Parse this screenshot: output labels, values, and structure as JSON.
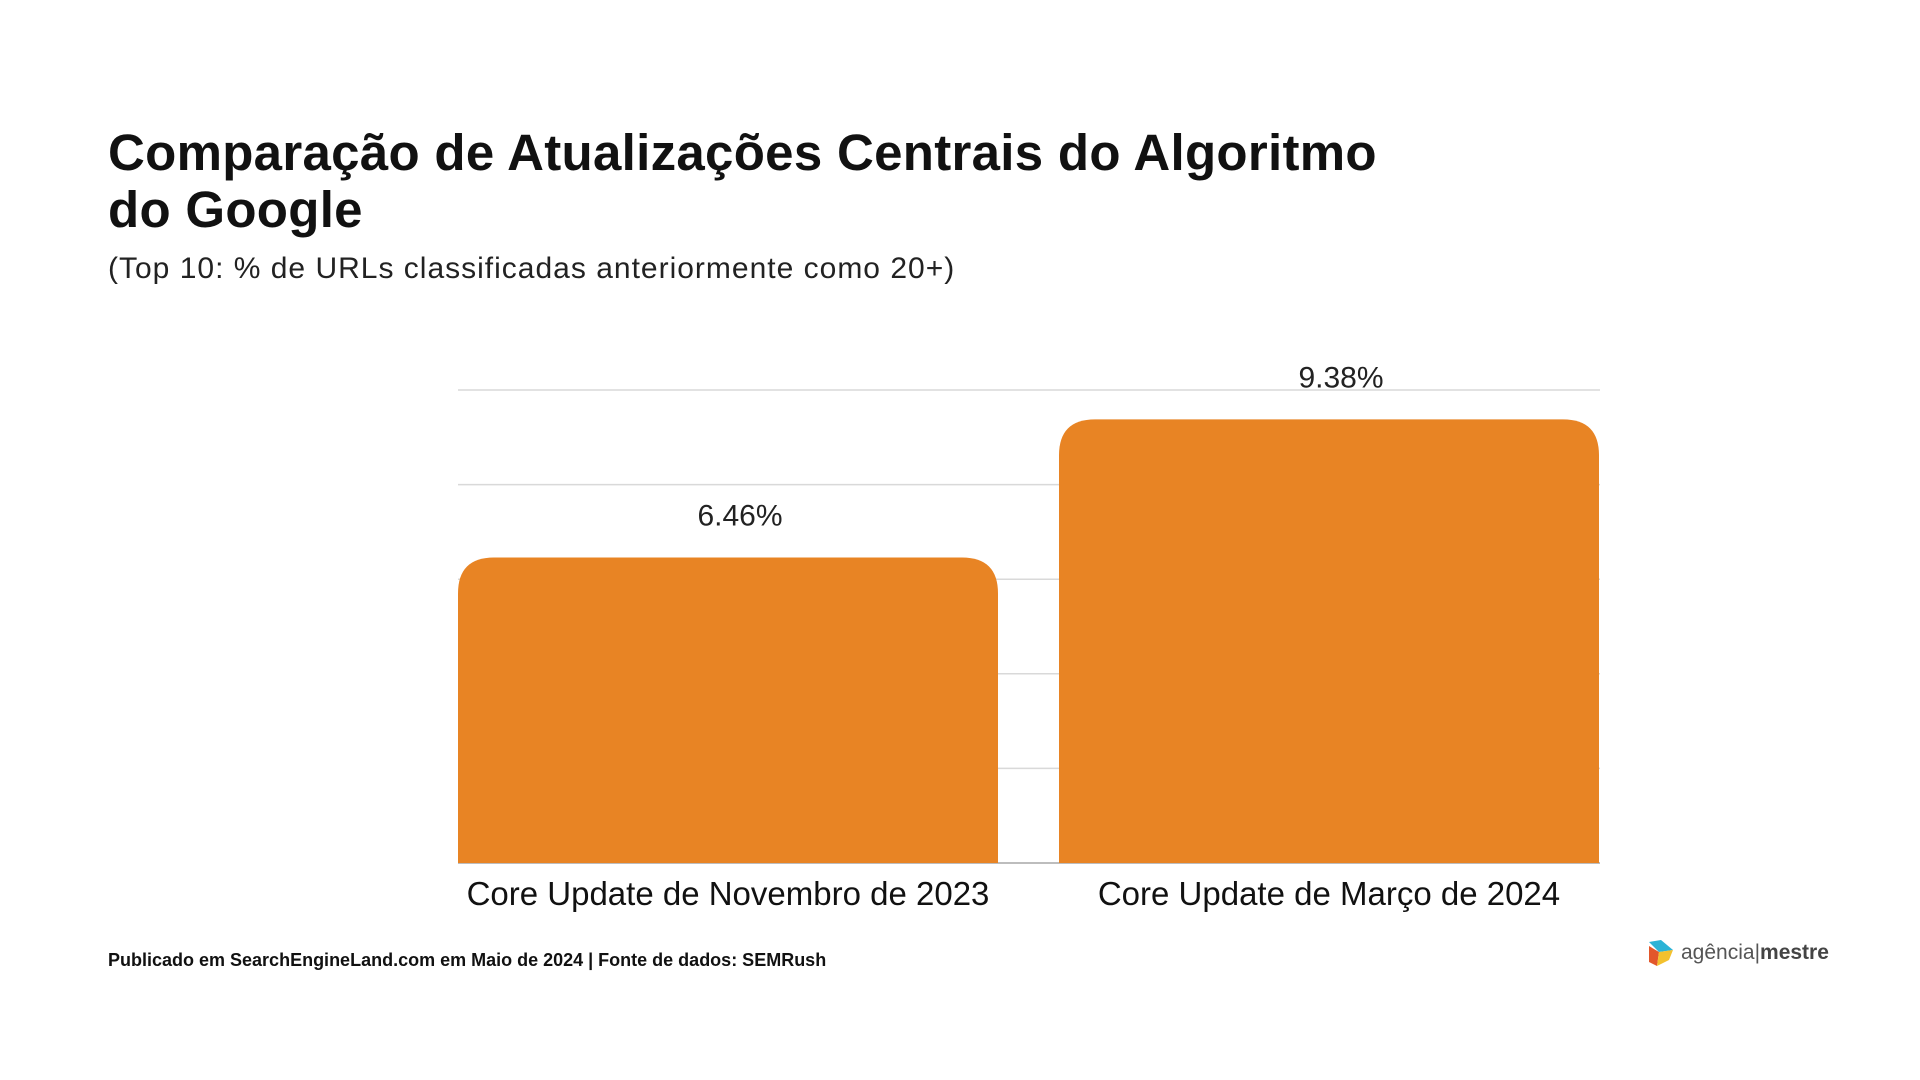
{
  "title": "Comparação de Atualizações Centrais do Algoritmo do Google",
  "subtitle": "(Top 10: % de URLs classificadas anteriormente como 20+)",
  "footer": "Publicado em SearchEngineLand.com em Maio de 2024 | Fonte de dados: SEMRush",
  "logo": {
    "text_light": "agência",
    "separator": "|",
    "text_bold": "mestre"
  },
  "chart_data": {
    "type": "bar",
    "title": "Comparação de Atualizações Centrais do Algoritmo do Google",
    "subtitle": "(Top 10: % de URLs classificadas anteriormente como 20+)",
    "categories": [
      "Core Update de Novembro de 2023",
      "Core Update de Março de 2024"
    ],
    "values": [
      6.46,
      9.38
    ],
    "data_labels": [
      "6.46%",
      "9.38%"
    ],
    "unit": "%",
    "ylim": [
      0,
      10
    ],
    "grid": true,
    "y_tick_labels_visible": false,
    "bar_color": "#E88424"
  }
}
